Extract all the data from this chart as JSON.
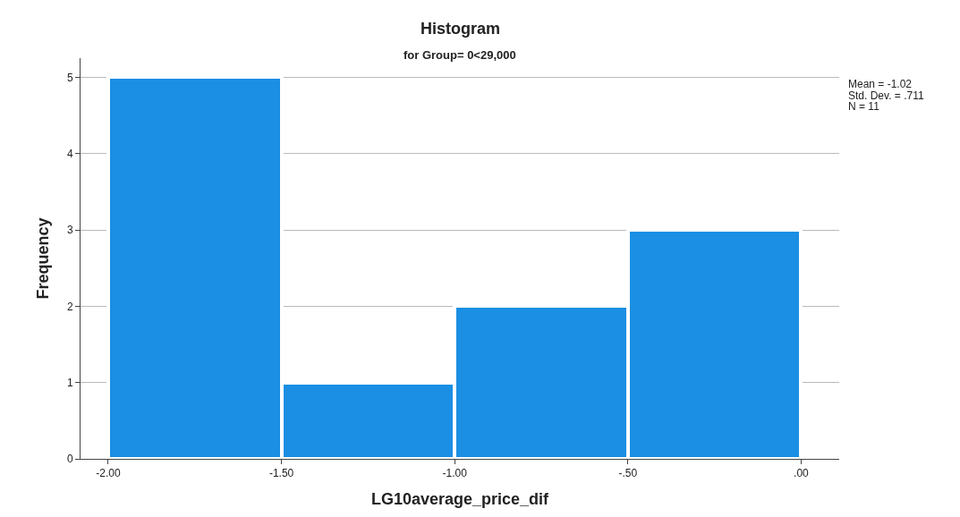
{
  "chart_data": {
    "type": "histogram",
    "title": "Histogram",
    "subtitle": "for Group= 0<29,000",
    "xlabel": "LG10average_price_dif",
    "ylabel": "Frequency",
    "bins": [
      -2.0,
      -1.5,
      -1.0,
      -0.5,
      0.0
    ],
    "values": [
      5,
      1,
      2,
      3
    ],
    "color": "#1a8fe3",
    "xlim": [
      -2.08,
      0.11
    ],
    "xticks": [
      {
        "value": -2.0,
        "label": "-2.00"
      },
      {
        "value": -1.5,
        "label": "-1.50"
      },
      {
        "value": -1.0,
        "label": "-1.00"
      },
      {
        "value": -0.5,
        "label": "-.50"
      },
      {
        "value": 0.0,
        "label": ".00"
      }
    ],
    "ylim": [
      0,
      5.25
    ],
    "yticks": [
      0,
      1,
      2,
      3,
      4,
      5
    ],
    "grid": "y",
    "annotations": [
      "Mean = -1.02",
      "Std. Dev. = .711",
      "N = 11"
    ]
  }
}
